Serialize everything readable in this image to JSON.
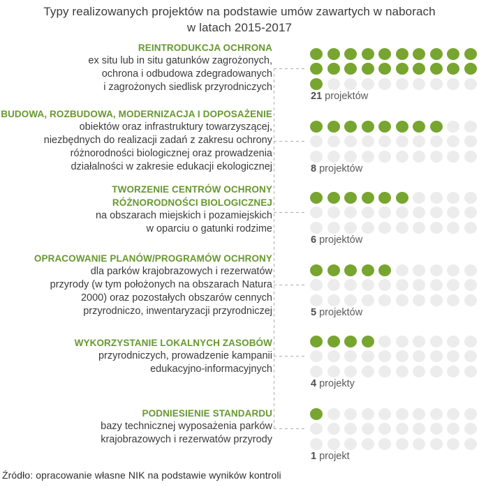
{
  "title": {
    "line1": "Typy realizowanych projektów na podstawie umów zawartych w naborach",
    "line2": "w latach 2015-2017"
  },
  "source": "Źródło: opracowanie własne NIK na podstawie wyników kontroli",
  "colors": {
    "filled_dot": "#77a52f",
    "empty_dot": "#ececec",
    "heading_green": "#67982f",
    "body_text": "#3a3a3a",
    "connector_gray": "#ababab"
  },
  "chart_data": {
    "type": "pictogram",
    "title": "Typy realizowanych projektów na podstawie umów zawartych w naborach w latach 2015-2017",
    "dots_per_row": 10,
    "rows_per_block": 3,
    "block_capacity": 30,
    "legend_position": "none",
    "grid": false,
    "values": [
      21,
      8,
      6,
      5,
      4,
      1
    ],
    "categories": [
      {
        "heading_lines": [
          "REINTRODUKCJA OCHRONA"
        ],
        "description_lines": [
          "ex situ lub in situ gatunków zagrożonych,",
          "ochrona i odbudowa zdegradowanych",
          "i zagrożonych siedlisk przyrodniczych"
        ],
        "value": 21,
        "count_label": "21",
        "unit_label": "projektów"
      },
      {
        "heading_lines": [
          "BUDOWA, ROZBUDOWA, MODERNIZACJA I DOPOSAŻENIE"
        ],
        "description_lines": [
          "obiektów oraz infrastruktury towarzyszącej,",
          "niezbędnych do realizacji zadań z zakresu ochrony",
          "różnorodności biologicznej oraz prowadzenia",
          "działalności w zakresie edukacji ekologicznej"
        ],
        "value": 8,
        "count_label": "8",
        "unit_label": "projektów"
      },
      {
        "heading_lines": [
          "TWORZENIE CENTRÓW OCHRONY",
          "RÓŻNORODNOŚCI BIOLOGICZNEJ"
        ],
        "description_lines": [
          "na obszarach miejskich i pozamiejskich",
          "w oparciu o gatunki rodzime"
        ],
        "value": 6,
        "count_label": "6",
        "unit_label": "projektów"
      },
      {
        "heading_lines": [
          "OPRACOWANIE PLANÓW/PROGRAMÓW OCHRONY"
        ],
        "description_lines": [
          "dla parków krajobrazowych i rezerwatów",
          "przyrody (w tym położonych na obszarach Natura",
          "2000) oraz pozostałych obszarów cennych",
          "przyrodniczo, inwentaryzacji przyrodniczej"
        ],
        "value": 5,
        "count_label": "5",
        "unit_label": "projektów"
      },
      {
        "heading_lines": [
          "WYKORZYSTANIE LOKALNYCH ZASOBÓW"
        ],
        "description_lines": [
          "przyrodniczych, prowadzenie kampanii",
          "edukacyjno-informacyjnych"
        ],
        "value": 4,
        "count_label": "4",
        "unit_label": "projekty"
      },
      {
        "heading_lines": [
          "PODNIESIENIE STANDARDU"
        ],
        "description_lines": [
          "bazy technicznej wyposażenia parków",
          "krajobrazowych i rezerwatów przyrody"
        ],
        "value": 1,
        "count_label": "1",
        "unit_label": "projekt"
      }
    ]
  }
}
